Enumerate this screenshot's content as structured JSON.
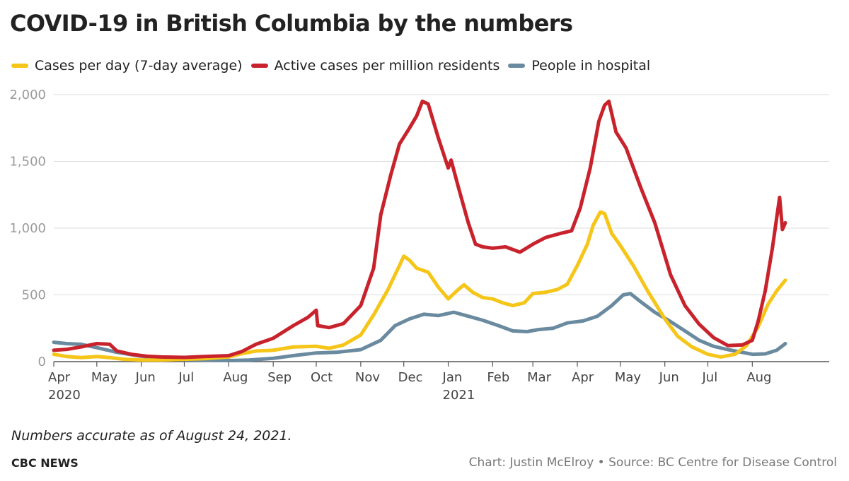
{
  "title": "COVID-19 in British Columbia by the numbers",
  "note": "Numbers accurate as of August 24, 2021.",
  "brand": "CBC NEWS",
  "credit": "Chart: Justin McElroy • Source: BC Centre for Disease Control",
  "chart_data": {
    "type": "line",
    "title": "COVID-19 in British Columbia by the numbers",
    "xlabel": "",
    "ylabel": "",
    "xlim": [
      "2020-04-01",
      "2021-08-25"
    ],
    "ylim": [
      0,
      2000
    ],
    "yticks": [
      0,
      500,
      1000,
      1500,
      2000
    ],
    "ytick_labels": [
      "0",
      "500",
      "1,000",
      "1,500",
      "2,000"
    ],
    "xticks": [
      {
        "date": "2020-04-01",
        "label": "Apr",
        "sub": "2020"
      },
      {
        "date": "2020-05-01",
        "label": "May",
        "sub": ""
      },
      {
        "date": "2020-06-01",
        "label": "Jun",
        "sub": ""
      },
      {
        "date": "2020-07-01",
        "label": "Jul",
        "sub": ""
      },
      {
        "date": "2020-08-01",
        "label": "Aug",
        "sub": ""
      },
      {
        "date": "2020-09-01",
        "label": "Sep",
        "sub": ""
      },
      {
        "date": "2020-10-01",
        "label": "Oct",
        "sub": ""
      },
      {
        "date": "2020-11-01",
        "label": "Nov",
        "sub": ""
      },
      {
        "date": "2020-12-01",
        "label": "Dec",
        "sub": ""
      },
      {
        "date": "2021-01-01",
        "label": "Jan",
        "sub": "2021"
      },
      {
        "date": "2021-02-01",
        "label": "Feb",
        "sub": ""
      },
      {
        "date": "2021-03-01",
        "label": "Mar",
        "sub": ""
      },
      {
        "date": "2021-04-01",
        "label": "Apr",
        "sub": ""
      },
      {
        "date": "2021-05-01",
        "label": "May",
        "sub": ""
      },
      {
        "date": "2021-06-01",
        "label": "Jun",
        "sub": ""
      },
      {
        "date": "2021-07-01",
        "label": "Jul",
        "sub": ""
      },
      {
        "date": "2021-08-01",
        "label": "Aug",
        "sub": ""
      }
    ],
    "grid": true,
    "legend": "top-left",
    "series": [
      {
        "name": "Cases per day (7-day average)",
        "color": "#f5c518",
        "points": [
          [
            "2020-04-01",
            55
          ],
          [
            "2020-04-10",
            38
          ],
          [
            "2020-04-20",
            30
          ],
          [
            "2020-05-01",
            38
          ],
          [
            "2020-05-10",
            30
          ],
          [
            "2020-05-20",
            18
          ],
          [
            "2020-06-01",
            12
          ],
          [
            "2020-06-15",
            12
          ],
          [
            "2020-07-01",
            18
          ],
          [
            "2020-07-15",
            22
          ],
          [
            "2020-08-01",
            35
          ],
          [
            "2020-08-10",
            60
          ],
          [
            "2020-08-20",
            80
          ],
          [
            "2020-09-01",
            85
          ],
          [
            "2020-09-15",
            110
          ],
          [
            "2020-10-01",
            115
          ],
          [
            "2020-10-10",
            100
          ],
          [
            "2020-10-20",
            125
          ],
          [
            "2020-11-01",
            200
          ],
          [
            "2020-11-10",
            350
          ],
          [
            "2020-11-20",
            540
          ],
          [
            "2020-11-28",
            720
          ],
          [
            "2020-12-01",
            790
          ],
          [
            "2020-12-05",
            760
          ],
          [
            "2020-12-10",
            700
          ],
          [
            "2020-12-18",
            670
          ],
          [
            "2020-12-25",
            560
          ],
          [
            "2021-01-01",
            470
          ],
          [
            "2021-01-08",
            540
          ],
          [
            "2021-01-12",
            575
          ],
          [
            "2021-01-18",
            520
          ],
          [
            "2021-01-25",
            480
          ],
          [
            "2021-02-01",
            470
          ],
          [
            "2021-02-08",
            440
          ],
          [
            "2021-02-15",
            420
          ],
          [
            "2021-02-23",
            440
          ],
          [
            "2021-03-01",
            510
          ],
          [
            "2021-03-10",
            520
          ],
          [
            "2021-03-18",
            540
          ],
          [
            "2021-03-25",
            580
          ],
          [
            "2021-04-01",
            720
          ],
          [
            "2021-04-08",
            880
          ],
          [
            "2021-04-12",
            1020
          ],
          [
            "2021-04-17",
            1120
          ],
          [
            "2021-04-20",
            1110
          ],
          [
            "2021-04-25",
            960
          ],
          [
            "2021-05-01",
            870
          ],
          [
            "2021-05-10",
            720
          ],
          [
            "2021-05-20",
            530
          ],
          [
            "2021-06-01",
            320
          ],
          [
            "2021-06-10",
            190
          ],
          [
            "2021-06-20",
            110
          ],
          [
            "2021-07-01",
            55
          ],
          [
            "2021-07-10",
            35
          ],
          [
            "2021-07-20",
            55
          ],
          [
            "2021-07-28",
            120
          ],
          [
            "2021-08-05",
            260
          ],
          [
            "2021-08-12",
            430
          ],
          [
            "2021-08-18",
            530
          ],
          [
            "2021-08-24",
            610
          ]
        ]
      },
      {
        "name": "Active cases per million residents",
        "color": "#c8232c",
        "points": [
          [
            "2020-04-01",
            85
          ],
          [
            "2020-04-10",
            92
          ],
          [
            "2020-04-20",
            110
          ],
          [
            "2020-05-01",
            135
          ],
          [
            "2020-05-10",
            130
          ],
          [
            "2020-05-15",
            80
          ],
          [
            "2020-05-25",
            55
          ],
          [
            "2020-06-05",
            40
          ],
          [
            "2020-06-15",
            35
          ],
          [
            "2020-07-01",
            32
          ],
          [
            "2020-07-15",
            38
          ],
          [
            "2020-08-01",
            45
          ],
          [
            "2020-08-10",
            75
          ],
          [
            "2020-08-20",
            130
          ],
          [
            "2020-09-01",
            175
          ],
          [
            "2020-09-15",
            270
          ],
          [
            "2020-09-25",
            330
          ],
          [
            "2020-10-01",
            385
          ],
          [
            "2020-10-02",
            270
          ],
          [
            "2020-10-10",
            255
          ],
          [
            "2020-10-20",
            285
          ],
          [
            "2020-11-01",
            420
          ],
          [
            "2020-11-10",
            700
          ],
          [
            "2020-11-15",
            1100
          ],
          [
            "2020-11-22",
            1400
          ],
          [
            "2020-11-28",
            1630
          ],
          [
            "2020-12-05",
            1750
          ],
          [
            "2020-12-10",
            1840
          ],
          [
            "2020-12-14",
            1950
          ],
          [
            "2020-12-18",
            1930
          ],
          [
            "2020-12-25",
            1680
          ],
          [
            "2021-01-01",
            1450
          ],
          [
            "2021-01-03",
            1510
          ],
          [
            "2021-01-08",
            1310
          ],
          [
            "2021-01-15",
            1040
          ],
          [
            "2021-01-20",
            880
          ],
          [
            "2021-01-25",
            860
          ],
          [
            "2021-02-01",
            850
          ],
          [
            "2021-02-10",
            860
          ],
          [
            "2021-02-20",
            820
          ],
          [
            "2021-03-01",
            880
          ],
          [
            "2021-03-10",
            930
          ],
          [
            "2021-03-20",
            960
          ],
          [
            "2021-03-28",
            980
          ],
          [
            "2021-04-03",
            1150
          ],
          [
            "2021-04-10",
            1450
          ],
          [
            "2021-04-16",
            1800
          ],
          [
            "2021-04-20",
            1920
          ],
          [
            "2021-04-23",
            1950
          ],
          [
            "2021-04-28",
            1720
          ],
          [
            "2021-05-05",
            1600
          ],
          [
            "2021-05-15",
            1310
          ],
          [
            "2021-05-25",
            1040
          ],
          [
            "2021-06-05",
            650
          ],
          [
            "2021-06-15",
            420
          ],
          [
            "2021-06-25",
            280
          ],
          [
            "2021-07-05",
            180
          ],
          [
            "2021-07-15",
            120
          ],
          [
            "2021-07-25",
            125
          ],
          [
            "2021-08-01",
            160
          ],
          [
            "2021-08-05",
            300
          ],
          [
            "2021-08-10",
            530
          ],
          [
            "2021-08-15",
            850
          ],
          [
            "2021-08-20",
            1230
          ],
          [
            "2021-08-22",
            990
          ],
          [
            "2021-08-24",
            1040
          ]
        ]
      },
      {
        "name": "People in hospital",
        "color": "#6a8a9f",
        "points": [
          [
            "2020-04-01",
            145
          ],
          [
            "2020-04-10",
            135
          ],
          [
            "2020-04-20",
            130
          ],
          [
            "2020-05-01",
            105
          ],
          [
            "2020-05-15",
            70
          ],
          [
            "2020-06-01",
            40
          ],
          [
            "2020-06-15",
            25
          ],
          [
            "2020-07-01",
            15
          ],
          [
            "2020-07-20",
            10
          ],
          [
            "2020-08-01",
            8
          ],
          [
            "2020-08-15",
            12
          ],
          [
            "2020-09-01",
            25
          ],
          [
            "2020-09-15",
            45
          ],
          [
            "2020-10-01",
            65
          ],
          [
            "2020-10-15",
            70
          ],
          [
            "2020-11-01",
            90
          ],
          [
            "2020-11-15",
            160
          ],
          [
            "2020-11-25",
            270
          ],
          [
            "2020-12-05",
            320
          ],
          [
            "2020-12-15",
            355
          ],
          [
            "2020-12-25",
            345
          ],
          [
            "2021-01-05",
            370
          ],
          [
            "2021-01-15",
            340
          ],
          [
            "2021-01-25",
            310
          ],
          [
            "2021-02-05",
            270
          ],
          [
            "2021-02-15",
            230
          ],
          [
            "2021-02-25",
            225
          ],
          [
            "2021-03-05",
            240
          ],
          [
            "2021-03-15",
            250
          ],
          [
            "2021-03-25",
            290
          ],
          [
            "2021-04-05",
            305
          ],
          [
            "2021-04-15",
            340
          ],
          [
            "2021-04-25",
            420
          ],
          [
            "2021-05-03",
            500
          ],
          [
            "2021-05-08",
            510
          ],
          [
            "2021-05-15",
            450
          ],
          [
            "2021-05-25",
            370
          ],
          [
            "2021-06-05",
            300
          ],
          [
            "2021-06-15",
            230
          ],
          [
            "2021-06-25",
            160
          ],
          [
            "2021-07-05",
            115
          ],
          [
            "2021-07-15",
            90
          ],
          [
            "2021-07-25",
            70
          ],
          [
            "2021-08-01",
            55
          ],
          [
            "2021-08-10",
            58
          ],
          [
            "2021-08-18",
            85
          ],
          [
            "2021-08-24",
            135
          ]
        ]
      }
    ]
  }
}
